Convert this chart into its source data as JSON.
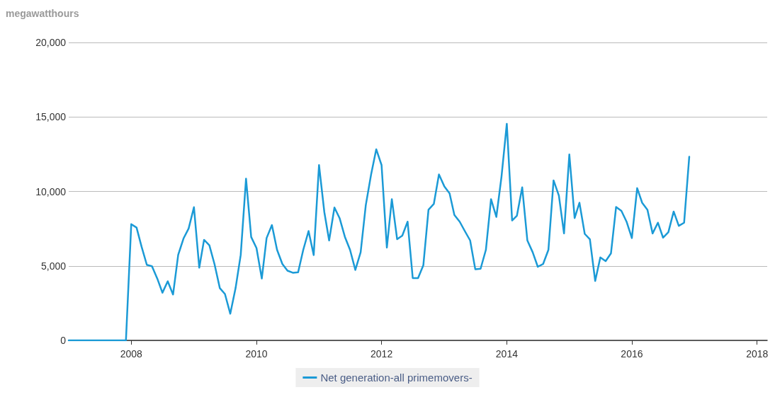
{
  "chart_data": {
    "type": "line",
    "ylabel": "megawatthours",
    "x": [
      "2007-01",
      "2007-02",
      "2007-03",
      "2007-04",
      "2007-05",
      "2007-06",
      "2007-07",
      "2007-08",
      "2007-09",
      "2007-10",
      "2007-11",
      "2007-12",
      "2008-01",
      "2008-02",
      "2008-03",
      "2008-04",
      "2008-05",
      "2008-06",
      "2008-07",
      "2008-08",
      "2008-09",
      "2008-10",
      "2008-11",
      "2008-12",
      "2009-01",
      "2009-02",
      "2009-03",
      "2009-04",
      "2009-05",
      "2009-06",
      "2009-07",
      "2009-08",
      "2009-09",
      "2009-10",
      "2009-11",
      "2009-12",
      "2010-01",
      "2010-02",
      "2010-03",
      "2010-04",
      "2010-05",
      "2010-06",
      "2010-07",
      "2010-08",
      "2010-09",
      "2010-10",
      "2010-11",
      "2010-12",
      "2011-01",
      "2011-02",
      "2011-03",
      "2011-04",
      "2011-05",
      "2011-06",
      "2011-07",
      "2011-08",
      "2011-09",
      "2011-10",
      "2011-11",
      "2011-12",
      "2012-01",
      "2012-02",
      "2012-03",
      "2012-04",
      "2012-05",
      "2012-06",
      "2012-07",
      "2012-08",
      "2012-09",
      "2012-10",
      "2012-11",
      "2012-12",
      "2013-01",
      "2013-02",
      "2013-03",
      "2013-04",
      "2013-05",
      "2013-06",
      "2013-07",
      "2013-08",
      "2013-09",
      "2013-10",
      "2013-11",
      "2013-12",
      "2014-01",
      "2014-02",
      "2014-03",
      "2014-04",
      "2014-05",
      "2014-06",
      "2014-07",
      "2014-08",
      "2014-09",
      "2014-10",
      "2014-11",
      "2014-12",
      "2015-01",
      "2015-02",
      "2015-03",
      "2015-04",
      "2015-05",
      "2015-06",
      "2015-07",
      "2015-08",
      "2015-09",
      "2015-10",
      "2015-11",
      "2015-12",
      "2016-01",
      "2016-02",
      "2016-03",
      "2016-04",
      "2016-05",
      "2016-06",
      "2016-07",
      "2016-08",
      "2016-09",
      "2016-10",
      "2016-11",
      "2016-12"
    ],
    "series": [
      {
        "name": "Net generation-all primemovers-",
        "color": "#1b9ad6",
        "values": [
          0,
          0,
          0,
          0,
          0,
          0,
          0,
          0,
          0,
          0,
          0,
          0,
          7800,
          7570,
          6300,
          5070,
          4980,
          4150,
          3200,
          3970,
          3080,
          5740,
          6840,
          7510,
          8940,
          4880,
          6750,
          6380,
          5120,
          3510,
          3110,
          1790,
          3510,
          5740,
          10860,
          6940,
          6200,
          4150,
          6870,
          7740,
          6080,
          5130,
          4680,
          4540,
          4570,
          6080,
          7340,
          5730,
          11770,
          8610,
          6710,
          8920,
          8210,
          6950,
          6080,
          4730,
          5920,
          9080,
          11140,
          12830,
          11770,
          6230,
          9480,
          6790,
          7030,
          7970,
          4180,
          4180,
          5050,
          8770,
          9160,
          11140,
          10350,
          9870,
          8420,
          7970,
          7340,
          6710,
          4780,
          4810,
          6080,
          9480,
          8290,
          10980,
          14540,
          8050,
          8370,
          10270,
          6710,
          5920,
          4940,
          5130,
          6080,
          10740,
          9720,
          7180,
          12480,
          8210,
          9240,
          7150,
          6790,
          3990,
          5570,
          5320,
          5840,
          8960,
          8690,
          7970,
          6870,
          10220,
          9240,
          8770,
          7180,
          7900,
          6900,
          7260,
          8650,
          7690,
          7900,
          12330
        ]
      }
    ],
    "xlim": [
      "2007-01",
      "2018-03"
    ],
    "xticks": [
      "2008",
      "2010",
      "2012",
      "2014",
      "2016",
      "2018"
    ],
    "ylim": [
      0,
      20000
    ],
    "yticks": [
      {
        "value": 0,
        "label": "0"
      },
      {
        "value": 5000,
        "label": "5,000"
      },
      {
        "value": 10000,
        "label": "10,000"
      },
      {
        "value": 15000,
        "label": "15,000"
      },
      {
        "value": 20000,
        "label": "20,000"
      }
    ],
    "grid": "y",
    "legend": "bottom",
    "marker": "none",
    "line_style": "solid"
  }
}
